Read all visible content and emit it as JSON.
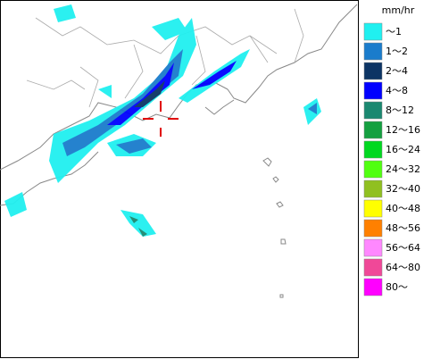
{
  "legend": {
    "unit": "mm/hr",
    "items": [
      {
        "label": "～1",
        "color": "#20f0f0"
      },
      {
        "label": "1～2",
        "color": "#1a7ccc"
      },
      {
        "label": "2～4",
        "color": "#0c3464"
      },
      {
        "label": "4～8",
        "color": "#0000ff"
      },
      {
        "label": "8～12",
        "color": "#1a8870"
      },
      {
        "label": "12～16",
        "color": "#14a040"
      },
      {
        "label": "16～24",
        "color": "#00d820"
      },
      {
        "label": "24～32",
        "color": "#50ff10"
      },
      {
        "label": "32～40",
        "color": "#90c020"
      },
      {
        "label": "40～48",
        "color": "#ffff00"
      },
      {
        "label": "48～56",
        "color": "#ff8000"
      },
      {
        "label": "56～64",
        "color": "#ff88ff"
      },
      {
        "label": "64～80",
        "color": "#f04898"
      },
      {
        "label": "80～",
        "color": "#ff00ff"
      }
    ]
  }
}
